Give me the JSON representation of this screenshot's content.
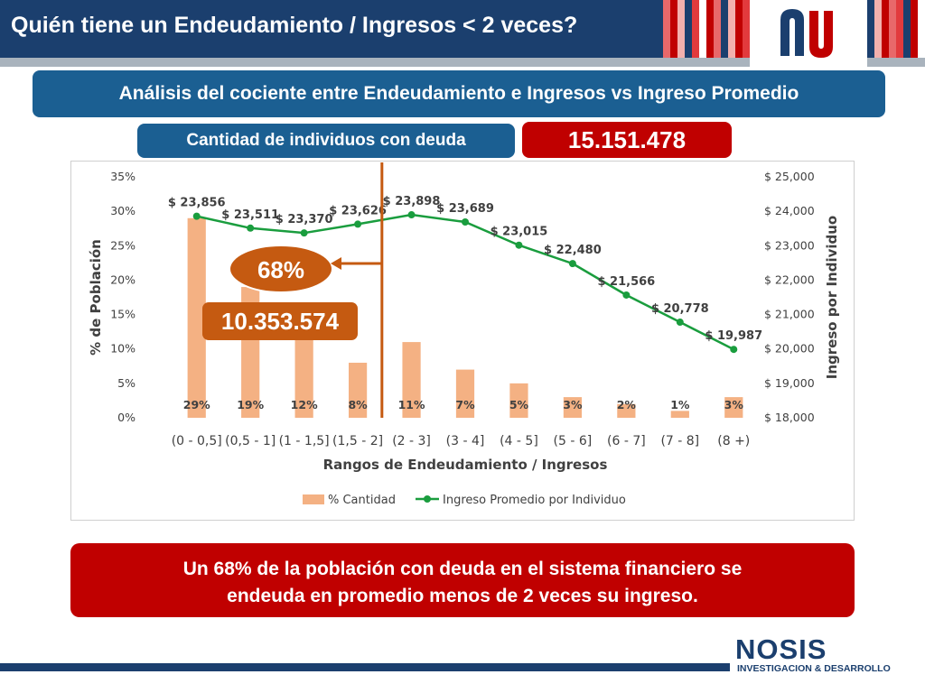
{
  "header": {
    "title": "Quién tiene un Endeudamiento / Ingresos < 2 veces?",
    "stripe_colors": [
      "#1b3f6e",
      "#e8686a",
      "#c00000",
      "#f3b0ad",
      "#e23a3d",
      "#ffffff"
    ]
  },
  "logo": {
    "icon": "nu-logo-icon",
    "colors": [
      "#1b3f6e",
      "#c00000"
    ]
  },
  "subtitle": "Análisis del cociente entre Endeudamiento e Ingresos vs Ingreso Promedio",
  "count": {
    "label": "Cantidad de individuos con deuda",
    "value": "15.151.478"
  },
  "chart_data": {
    "type": "bar+line",
    "categories": [
      "(0 - 0,5]",
      "(0,5 - 1]",
      "(1 - 1,5]",
      "(1,5 - 2]",
      "(2 - 3]",
      "(3 - 4]",
      "(4 - 5]",
      "(5 - 6]",
      "(6 - 7]",
      "(7 - 8]",
      "(8 +)"
    ],
    "xlabel": "Rangos de Endeudamiento / Ingresos",
    "ylabel_left": "% de Población",
    "ylabel_right": "Ingreso por Individuo",
    "ylim_left": [
      0,
      35
    ],
    "ylim_right": [
      18000,
      25000
    ],
    "yticks_left": [
      "0%",
      "5%",
      "10%",
      "15%",
      "20%",
      "25%",
      "30%",
      "35%"
    ],
    "yticks_right": [
      "$ 18,000",
      "$ 19,000",
      "$ 20,000",
      "$ 21,000",
      "$ 22,000",
      "$ 23,000",
      "$ 24,000",
      "$ 25,000"
    ],
    "series": [
      {
        "name": "% Cantidad",
        "type": "bar",
        "axis": "left",
        "color": "#f4b183",
        "values": [
          29,
          19,
          12,
          8,
          11,
          7,
          5,
          3,
          2,
          1,
          3
        ],
        "labels": [
          "29%",
          "19%",
          "12%",
          "8%",
          "11%",
          "7%",
          "5%",
          "3%",
          "2%",
          "1%",
          "3%"
        ]
      },
      {
        "name": "Ingreso Promedio por Individuo",
        "type": "line",
        "axis": "right",
        "color": "#1a9d3e",
        "values": [
          23856,
          23511,
          23370,
          23626,
          23898,
          23689,
          23015,
          22480,
          21566,
          20778,
          19987
        ],
        "labels": [
          "$ 23,856",
          "$ 23,511",
          "$ 23,370",
          "$ 23,626",
          "$ 23,898",
          "$ 23,689",
          "$ 23,015",
          "$ 22,480",
          "$ 21,566",
          "$ 20,778",
          "$ 19,987"
        ]
      }
    ],
    "legend_position": "bottom",
    "grid": false,
    "annotations": {
      "divider_after_category": "(1,5 - 2]",
      "divider_color": "#c55a11",
      "percent_label": "68%",
      "count_label": "10.353.574",
      "callout_color": "#c55a11"
    }
  },
  "conclusion": {
    "line1": "Un 68% de la población con deuda en el sistema financiero se",
    "line2": "endeuda en promedio menos de 2 veces su ingreso."
  },
  "footer": {
    "brand": "NOSIS",
    "tagline": "INVESTIGACION & DESARROLLO"
  }
}
